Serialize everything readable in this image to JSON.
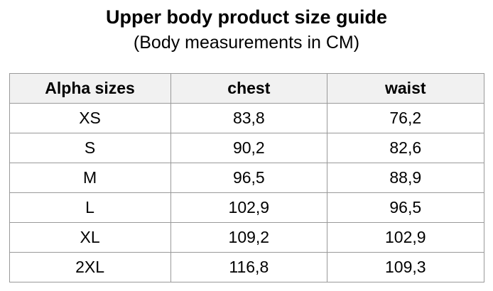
{
  "title": "Upper body product size guide",
  "subtitle": "(Body measurements in CM)",
  "table": {
    "headers": [
      "Alpha sizes",
      "chest",
      "waist"
    ],
    "rows": [
      [
        "XS",
        "83,8",
        "76,2"
      ],
      [
        "S",
        "90,2",
        "82,6"
      ],
      [
        "M",
        "96,5",
        "88,9"
      ],
      [
        "L",
        "102,9",
        "96,5"
      ],
      [
        "XL",
        "109,2",
        "102,9"
      ],
      [
        "2XL",
        "116,8",
        "109,3"
      ]
    ]
  },
  "colors": {
    "header_bg": "#f1f1f1",
    "border": "#999999",
    "text": "#000000",
    "background": "#ffffff"
  }
}
